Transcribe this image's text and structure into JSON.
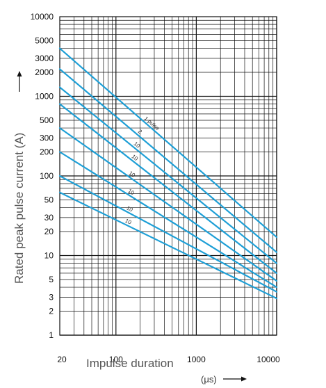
{
  "chart_data": {
    "type": "line",
    "title": "",
    "xlabel": "Impulse duration",
    "xunit": "(μs)",
    "ylabel": "Rated peak pulse current (A)",
    "xscale": "log",
    "yscale": "log",
    "xlim": [
      20,
      10000
    ],
    "ylim": [
      1,
      10000
    ],
    "grid": true,
    "x_ticks": [
      20,
      100,
      1000,
      10000
    ],
    "x_tick_labels": [
      "20",
      "100",
      "1000",
      "10000"
    ],
    "y_ticks": [
      1,
      2,
      3,
      5,
      10,
      20,
      30,
      50,
      100,
      200,
      300,
      500,
      1000,
      2000,
      3000,
      5000,
      10000
    ],
    "y_tick_labels": [
      "1",
      "2",
      "3",
      "5",
      "10",
      "20",
      "30",
      "50",
      "100",
      "200",
      "300",
      "500",
      "1000",
      "2000",
      "3000",
      "5000",
      "10000"
    ],
    "line_color": "#1e9fd6",
    "series": [
      {
        "label": "1 pulse",
        "x": [
          20,
          10000
        ],
        "y": [
          4000,
          17
        ]
      },
      {
        "label": "2",
        "x": [
          20,
          10000
        ],
        "y": [
          2200,
          11
        ]
      },
      {
        "label": "10",
        "x": [
          20,
          10000
        ],
        "y": [
          1300,
          8
        ]
      },
      {
        "label": "10",
        "x": [
          20,
          10000
        ],
        "y": [
          800,
          6
        ]
      },
      {
        "label": "10",
        "x": [
          20,
          10000
        ],
        "y": [
          400,
          4.8
        ]
      },
      {
        "label": "10",
        "x": [
          20,
          10000
        ],
        "y": [
          200,
          4
        ]
      },
      {
        "label": "10",
        "x": [
          20,
          10000
        ],
        "y": [
          100,
          3.5
        ]
      },
      {
        "label": "10",
        "x": [
          20,
          10000
        ],
        "y": [
          62,
          2.9
        ]
      }
    ]
  }
}
